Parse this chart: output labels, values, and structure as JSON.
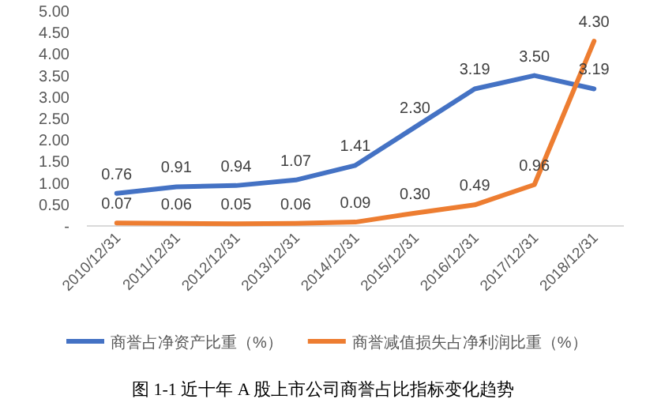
{
  "chart_data": {
    "type": "line",
    "categories": [
      "2010/12/31",
      "2011/12/31",
      "2012/12/31",
      "2013/12/31",
      "2014/12/31",
      "2015/12/31",
      "2016/12/31",
      "2017/12/31",
      "2018/12/31"
    ],
    "series": [
      {
        "name": "商誉占净资产比重（%）",
        "color": "#4472c4",
        "values": [
          0.76,
          0.91,
          0.94,
          1.07,
          1.41,
          2.3,
          3.19,
          3.5,
          3.19
        ],
        "value_labels": [
          "0.76",
          "0.91",
          "0.94",
          "1.07",
          "1.41",
          "2.30",
          "3.19",
          "3.50",
          "3.19"
        ]
      },
      {
        "name": "商誉减值损失占净利润比重（%）",
        "color": "#ed7d31",
        "values": [
          0.07,
          0.06,
          0.05,
          0.06,
          0.09,
          0.3,
          0.49,
          0.96,
          4.3
        ],
        "value_labels": [
          "0.07",
          "0.06",
          "0.05",
          "0.06",
          "0.09",
          "0.30",
          "0.49",
          "0.96",
          "4.30"
        ]
      }
    ],
    "ylim": [
      0,
      5
    ],
    "yticks": [
      {
        "value": 0,
        "label": "-"
      },
      {
        "value": 0.5,
        "label": "0.50"
      },
      {
        "value": 1,
        "label": "1.00"
      },
      {
        "value": 1.5,
        "label": "1.50"
      },
      {
        "value": 2,
        "label": "2.00"
      },
      {
        "value": 2.5,
        "label": "2.50"
      },
      {
        "value": 3,
        "label": "3.00"
      },
      {
        "value": 3.5,
        "label": "3.50"
      },
      {
        "value": 4,
        "label": "4.00"
      },
      {
        "value": 4.5,
        "label": "4.50"
      },
      {
        "value": 5,
        "label": "5.00"
      }
    ],
    "grid": false,
    "legend": "bottom",
    "marker": "none",
    "line_style": "solid",
    "annotations": [
      "图 1-1  近十年 A 股上市公司商誉占比指标变化趋势"
    ]
  }
}
